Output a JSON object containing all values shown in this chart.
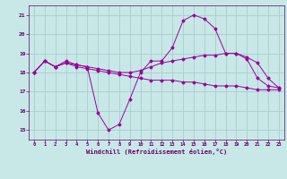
{
  "hours": [
    0,
    1,
    2,
    3,
    4,
    5,
    6,
    7,
    8,
    9,
    10,
    11,
    12,
    13,
    14,
    15,
    16,
    17,
    18,
    19,
    20,
    21,
    22,
    23
  ],
  "line1": [
    18.0,
    18.6,
    18.3,
    18.6,
    18.4,
    18.3,
    15.9,
    15.0,
    15.3,
    16.6,
    18.0,
    18.6,
    18.6,
    19.3,
    20.7,
    21.0,
    20.8,
    20.3,
    19.0,
    19.0,
    18.7,
    17.7,
    17.3,
    17.2
  ],
  "line2": [
    18.0,
    18.6,
    18.3,
    18.5,
    18.4,
    18.3,
    18.2,
    18.1,
    18.0,
    18.0,
    18.1,
    18.3,
    18.5,
    18.6,
    18.7,
    18.8,
    18.9,
    18.9,
    19.0,
    19.0,
    18.8,
    18.5,
    17.7,
    17.2
  ],
  "line3": [
    18.0,
    18.6,
    18.3,
    18.5,
    18.3,
    18.2,
    18.1,
    18.0,
    17.9,
    17.8,
    17.7,
    17.6,
    17.6,
    17.6,
    17.5,
    17.5,
    17.4,
    17.3,
    17.3,
    17.3,
    17.2,
    17.1,
    17.1,
    17.1
  ],
  "line_color": "#990099",
  "bg_color": "#c8e8e8",
  "grid_color": "#aacccc",
  "axis_color": "#660066",
  "xlabel": "Windchill (Refroidissement éolien,°C)",
  "ylim": [
    14.5,
    21.5
  ],
  "xlim": [
    -0.5,
    23.5
  ],
  "yticks": [
    15,
    16,
    17,
    18,
    19,
    20,
    21
  ],
  "xticks": [
    0,
    1,
    2,
    3,
    4,
    5,
    6,
    7,
    8,
    9,
    10,
    11,
    12,
    13,
    14,
    15,
    16,
    17,
    18,
    19,
    20,
    21,
    22,
    23
  ]
}
